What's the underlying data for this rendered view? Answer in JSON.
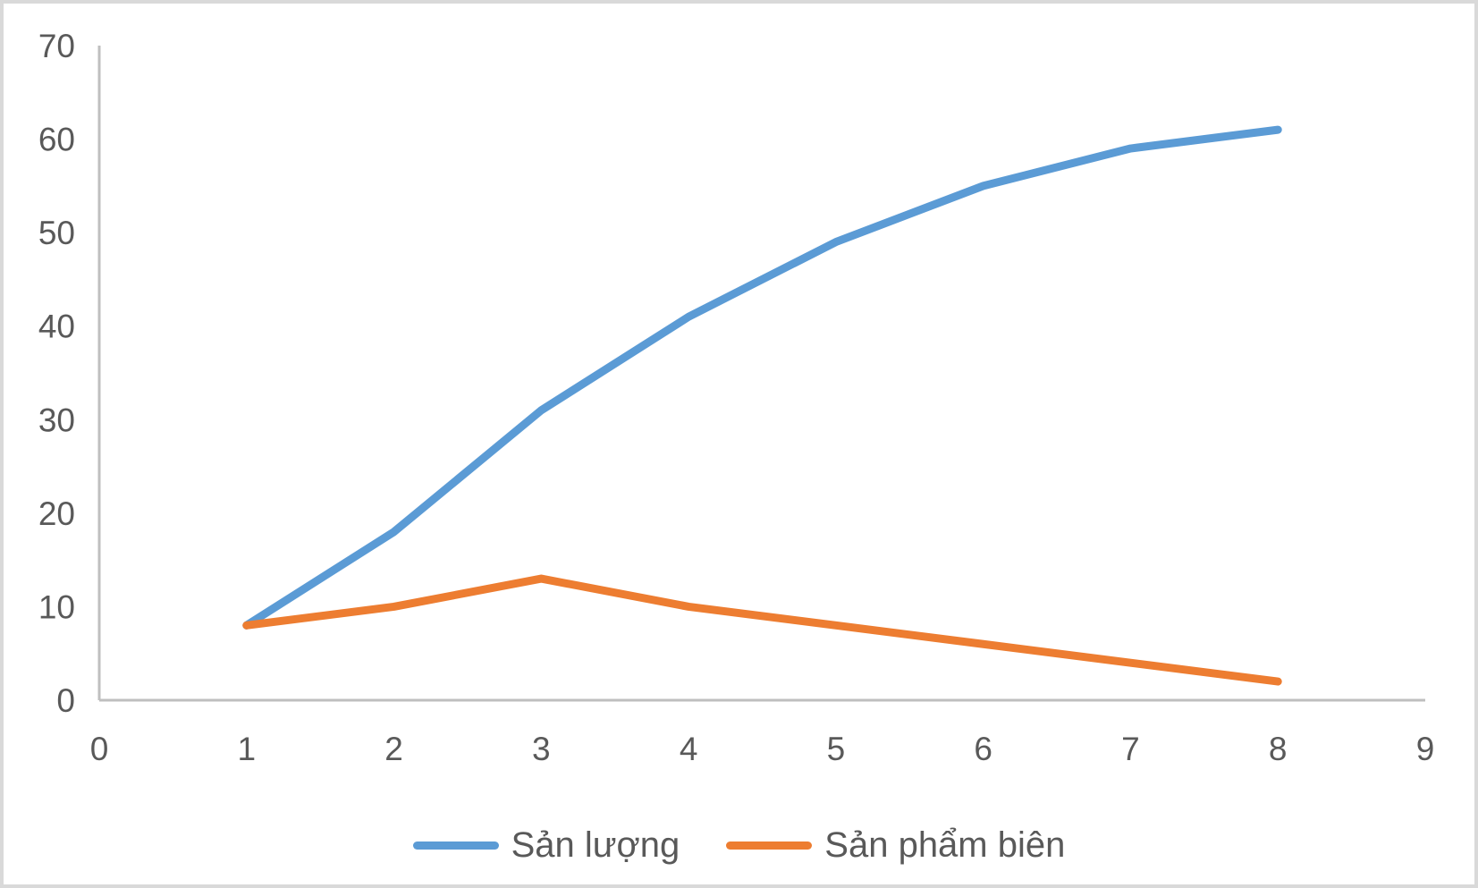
{
  "chart_data": {
    "type": "line",
    "x": [
      1,
      2,
      3,
      4,
      5,
      6,
      7,
      8
    ],
    "series": [
      {
        "name": "Sản lượng",
        "color": "#5B9BD5",
        "values": [
          8,
          18,
          31,
          41,
          49,
          55,
          59,
          61
        ]
      },
      {
        "name": "Sản phẩm biên",
        "color": "#ED7D31",
        "values": [
          8,
          10,
          13,
          10,
          8,
          6,
          4,
          2
        ]
      }
    ],
    "title": "",
    "xlabel": "",
    "ylabel": "",
    "xlim": [
      0,
      9
    ],
    "ylim": [
      0,
      70
    ],
    "x_ticks": [
      0,
      1,
      2,
      3,
      4,
      5,
      6,
      7,
      8,
      9
    ],
    "y_ticks": [
      0,
      10,
      20,
      30,
      40,
      50,
      60,
      70
    ],
    "grid": false,
    "legend_position": "bottom",
    "colors": {
      "axis_line": "#bfbfbf",
      "tick_text": "#595959",
      "border": "#d9d9d9",
      "background": "#ffffff"
    }
  }
}
